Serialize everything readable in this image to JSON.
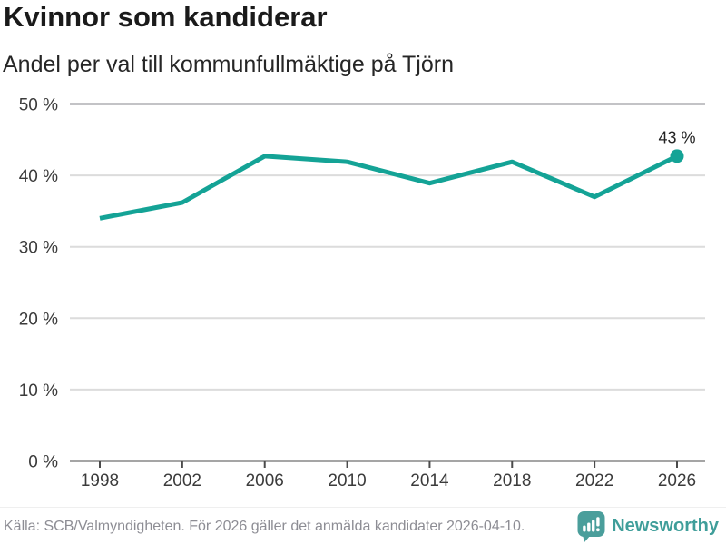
{
  "title": "Kvinnor som kandiderar",
  "subtitle": "Andel per val till kommunfullmäktige på Tjörn",
  "chart_data": {
    "type": "line",
    "title": "Kvinnor som kandiderar",
    "subtitle": "Andel per val till kommunfullmäktige på Tjörn",
    "x": [
      1998,
      2002,
      2006,
      2010,
      2014,
      2018,
      2022,
      2026
    ],
    "values": [
      34,
      36.2,
      42.7,
      41.9,
      38.9,
      41.9,
      37,
      42.7
    ],
    "xtick_labels": [
      "1998",
      "2002",
      "2006",
      "2010",
      "2014",
      "2018",
      "2022",
      "2026"
    ],
    "yticks": [
      0,
      10,
      20,
      30,
      40,
      50
    ],
    "ytick_labels": [
      "0 %",
      "10 %",
      "20 %",
      "30 %",
      "40 %",
      "50 %"
    ],
    "ylim": [
      0,
      50
    ],
    "grid": "horizontal",
    "legend": "none",
    "annotation": {
      "x": 2026,
      "label": "43 %"
    },
    "end_marker": true
  },
  "footer": {
    "source": "Källa: SCB/Valmyndigheten. För 2026 gäller det anmälda kandidater 2026-04-10.",
    "brand": "Newsworthy"
  },
  "colors": {
    "line": "#14a396",
    "marker": "#14a396",
    "grid_light": "#dcdcdc",
    "grid_top": "#87878c",
    "axis": "#4b4b4b",
    "tick_label": "#3b3b3b",
    "annotation": "#222222",
    "title": "#1a1a1a",
    "subtitle": "#262626",
    "footer_text": "#8d8d94",
    "brand_text": "#3f9e9a",
    "logo_fill": "#4a9e9b"
  }
}
